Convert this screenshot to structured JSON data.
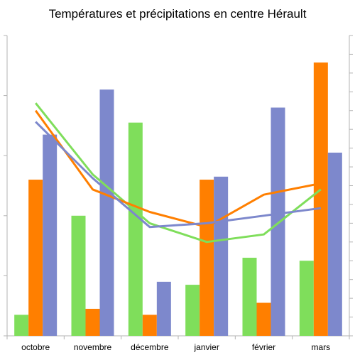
{
  "chart_data": {
    "type": "bar",
    "title": "Températures et précipitations en centre Hérault",
    "xlabel": "",
    "ylabel": "",
    "categories": [
      "octobre",
      "novembre",
      "décembre",
      "janvier",
      "février",
      "mars"
    ],
    "ylim": [
      0,
      100
    ],
    "y2lim": [
      0,
      40
    ],
    "grid": false,
    "legend": "none",
    "series": [
      {
        "kind": "bar",
        "color": "#7fde5b",
        "values": [
          7,
          40,
          71,
          17,
          26,
          25
        ]
      },
      {
        "kind": "bar",
        "color": "#ff7f00",
        "values": [
          52,
          9,
          7,
          52,
          11,
          91
        ]
      },
      {
        "kind": "bar",
        "color": "#7d88cc",
        "values": [
          67,
          82,
          18,
          53,
          76,
          61
        ]
      },
      {
        "kind": "line",
        "axis": "secondary",
        "color": "#7fde5b",
        "values": [
          31,
          21.5,
          15,
          12.5,
          13.5,
          19.5
        ]
      },
      {
        "kind": "line",
        "axis": "secondary",
        "color": "#ff7f00",
        "values": [
          30,
          19.5,
          16.5,
          14.5,
          18.8,
          20.3
        ]
      },
      {
        "kind": "line",
        "axis": "secondary",
        "color": "#7d88cc",
        "values": [
          28.5,
          21,
          14.5,
          15,
          16,
          17
        ]
      }
    ]
  }
}
